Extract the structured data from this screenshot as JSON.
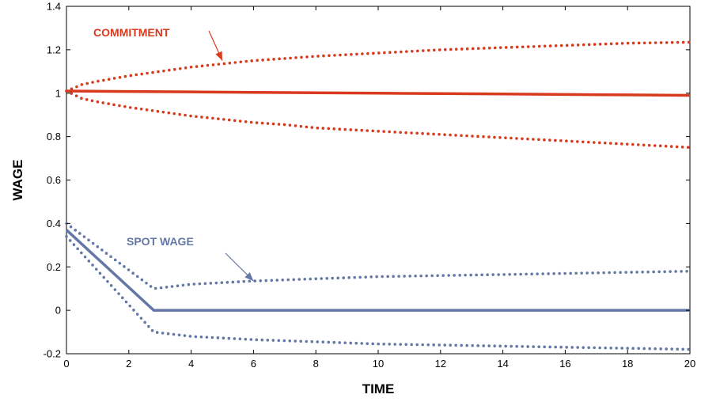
{
  "chart_data": {
    "type": "line",
    "xlabel": "TIME",
    "ylabel": "WAGE",
    "xlim": [
      0,
      20
    ],
    "ylim": [
      -0.2,
      1.4
    ],
    "xticks": [
      "0",
      "2",
      "4",
      "6",
      "8",
      "10",
      "12",
      "14",
      "16",
      "18",
      "20"
    ],
    "yticks": [
      "-0.2",
      "0",
      "0.2",
      "0.4",
      "0.6",
      "0.8",
      "1",
      "1.2",
      "1.4"
    ],
    "grid": false,
    "legend": "none",
    "colors": {
      "commitment": "#d83a1e",
      "spot": "#6478a5"
    },
    "annotations": [
      {
        "text": "COMMITMENT",
        "color": "#d83a1e",
        "points_to_x": 5,
        "points_to_y": 1.15
      },
      {
        "text": "SPOT WAGE",
        "color": "#6478a5",
        "points_to_x": 6,
        "points_to_y": 0.135
      }
    ],
    "series": [
      {
        "group": "commitment",
        "style": "solid",
        "x": [
          0,
          2,
          4,
          6,
          8,
          10,
          12,
          14,
          16,
          18,
          20
        ],
        "y": [
          1.01,
          1.008,
          1.006,
          1.004,
          1.002,
          1.0,
          0.998,
          0.996,
          0.994,
          0.992,
          0.99
        ]
      },
      {
        "group": "commitment",
        "style": "dotted",
        "x": [
          0,
          0.5,
          1,
          2,
          3,
          4,
          5,
          6,
          7,
          8,
          10,
          12,
          14,
          16,
          18,
          20
        ],
        "y": [
          1.01,
          1.04,
          1.055,
          1.08,
          1.1,
          1.12,
          1.135,
          1.15,
          1.16,
          1.17,
          1.185,
          1.2,
          1.21,
          1.22,
          1.23,
          1.235
        ]
      },
      {
        "group": "commitment",
        "style": "dotted",
        "x": [
          0,
          0.5,
          1,
          2,
          3,
          4,
          5,
          6,
          7,
          8,
          10,
          12,
          14,
          16,
          18,
          20
        ],
        "y": [
          1.01,
          0.975,
          0.96,
          0.935,
          0.915,
          0.895,
          0.88,
          0.865,
          0.855,
          0.84,
          0.825,
          0.81,
          0.795,
          0.78,
          0.765,
          0.75
        ]
      },
      {
        "group": "spot",
        "style": "solid",
        "x": [
          0,
          2.8,
          4,
          6,
          8,
          10,
          12,
          14,
          16,
          18,
          20
        ],
        "y": [
          0.37,
          0.0,
          0.0,
          0.0,
          0.0,
          0.0,
          0.0,
          0.0,
          0.0,
          0.0,
          0.0
        ]
      },
      {
        "group": "spot",
        "style": "dotted",
        "x": [
          0,
          2.8,
          4,
          6,
          8,
          10,
          12,
          14,
          16,
          18,
          20
        ],
        "y": [
          0.4,
          0.1,
          0.12,
          0.135,
          0.145,
          0.155,
          0.16,
          0.165,
          0.17,
          0.175,
          0.18
        ]
      },
      {
        "group": "spot",
        "style": "dotted",
        "x": [
          0,
          2.8,
          4,
          6,
          8,
          10,
          12,
          14,
          16,
          18,
          20
        ],
        "y": [
          0.34,
          -0.1,
          -0.12,
          -0.135,
          -0.145,
          -0.155,
          -0.16,
          -0.165,
          -0.17,
          -0.175,
          -0.18
        ]
      }
    ]
  }
}
